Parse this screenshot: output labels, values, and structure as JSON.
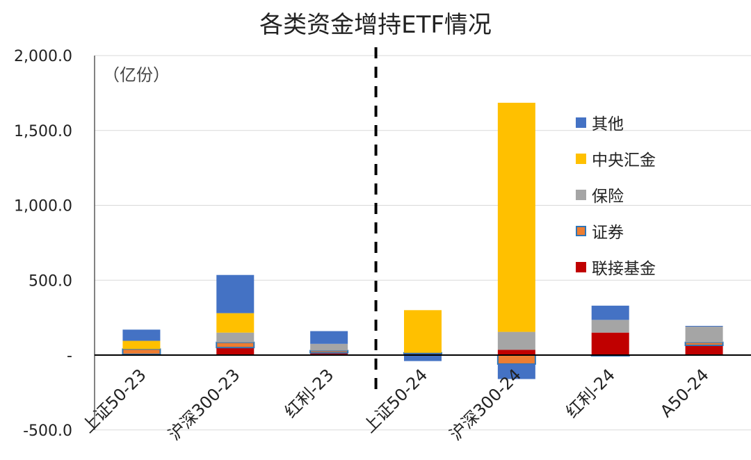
{
  "chart_data": {
    "type": "bar",
    "stacked": true,
    "title": "各类资金增持ETF情况",
    "unit_label": "（亿份）",
    "categories": [
      "上证50-23",
      "沪深300-23",
      "红利-23",
      "上证50-24",
      "沪深300-24",
      "红利-24",
      "A50-24"
    ],
    "ylim": [
      -500,
      2000
    ],
    "yticks": [
      {
        "value": 2000,
        "label": "2,000.0"
      },
      {
        "value": 1500,
        "label": "1,500.0"
      },
      {
        "value": 1000,
        "label": "1,000.0"
      },
      {
        "value": 500,
        "label": "500.0"
      },
      {
        "value": 0,
        "label": "-"
      },
      {
        "value": -500,
        "label": "-500.0"
      }
    ],
    "divider_after_category": 2,
    "legend_position": "top-right",
    "series": [
      {
        "name": "联接基金",
        "color": "#C00000",
        "values": [
          5,
          50,
          15,
          10,
          35,
          150,
          65
        ]
      },
      {
        "name": "证券",
        "color": "#ED7D31",
        "border": "#2E75B6",
        "values": [
          35,
          35,
          15,
          5,
          -60,
          -5,
          20
        ]
      },
      {
        "name": "保险",
        "color": "#A5A5A5",
        "values": [
          0,
          65,
          45,
          0,
          120,
          85,
          105
        ]
      },
      {
        "name": "中央汇金",
        "color": "#FFC000",
        "values": [
          55,
          130,
          0,
          285,
          1530,
          0,
          0
        ]
      },
      {
        "name": "其他",
        "color": "#4472C4",
        "values": [
          75,
          255,
          85,
          -40,
          -100,
          95,
          5
        ]
      }
    ]
  }
}
